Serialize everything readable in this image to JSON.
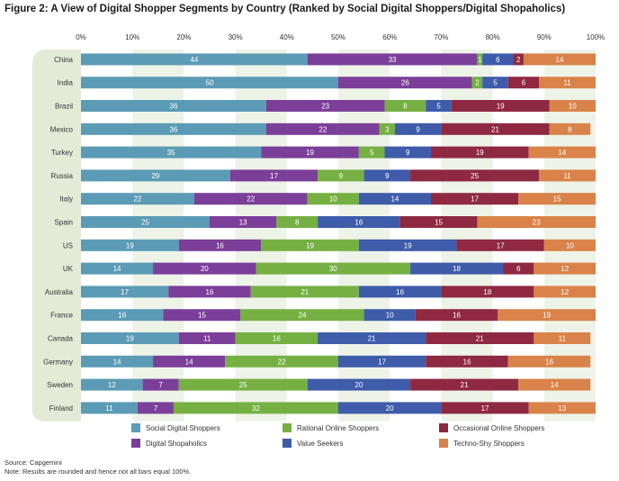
{
  "title": "Figure 2: A View of Digital Shopper Segments by Country (Ranked by Social Digital Shoppers/Digital Shopaholics)",
  "chart_data": {
    "type": "bar",
    "orientation": "horizontal",
    "stacked": true,
    "title": "Figure 2: A View of Digital Shopper Segments by Country (Ranked by Social Digital Shoppers/Digital Shopaholics)",
    "xlim": [
      0,
      100
    ],
    "x_ticks": [
      "0%",
      "10%",
      "20%",
      "30%",
      "40%",
      "50%",
      "60%",
      "70%",
      "80%",
      "90%",
      "100%"
    ],
    "x_axis_position": "top",
    "grid": false,
    "legend_position": "bottom",
    "categories": [
      "China",
      "India",
      "Brazil",
      "Mexico",
      "Turkey",
      "Russia",
      "Italy",
      "Spain",
      "US",
      "UK",
      "Australia",
      "France",
      "Canada",
      "Germany",
      "Sweden",
      "Finland"
    ],
    "series": [
      {
        "name": "Social Digital Shoppers",
        "color": "#5b9bb5",
        "values": [
          44,
          50,
          36,
          36,
          35,
          29,
          22,
          25,
          19,
          14,
          17,
          16,
          19,
          14,
          12,
          11
        ]
      },
      {
        "name": "Digital Shopaholics",
        "color": "#7b3f99",
        "values": [
          33,
          26,
          23,
          22,
          19,
          17,
          22,
          13,
          16,
          20,
          16,
          15,
          11,
          14,
          7,
          7
        ]
      },
      {
        "name": "Rational Online Shoppers",
        "color": "#76b043",
        "values": [
          1,
          2,
          8,
          3,
          5,
          9,
          10,
          8,
          19,
          30,
          21,
          24,
          16,
          22,
          25,
          32
        ]
      },
      {
        "name": "Value Seekers",
        "color": "#3e5caa",
        "values": [
          6,
          5,
          5,
          9,
          9,
          9,
          14,
          16,
          19,
          18,
          16,
          10,
          21,
          17,
          20,
          20
        ]
      },
      {
        "name": "Occasional Online Shoppers",
        "color": "#8e2941",
        "values": [
          2,
          6,
          19,
          21,
          19,
          25,
          17,
          15,
          17,
          6,
          18,
          16,
          21,
          16,
          21,
          17
        ]
      },
      {
        "name": "Techno-Shy Shoppers",
        "color": "#d9834a",
        "values": [
          14,
          11,
          10,
          8,
          14,
          11,
          15,
          23,
          10,
          12,
          12,
          19,
          11,
          16,
          14,
          13
        ]
      }
    ]
  },
  "source": "Source: Capgemini",
  "note": "Note: Results are rounded and hence not all bars equal 100%."
}
